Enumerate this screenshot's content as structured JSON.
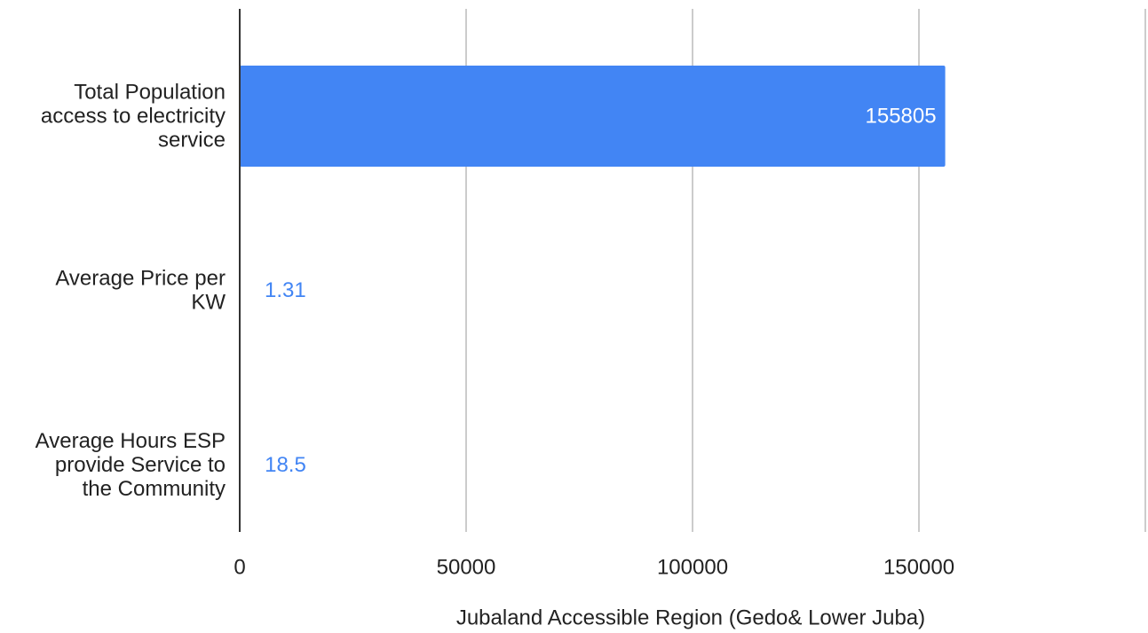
{
  "chart_data": {
    "type": "bar",
    "orientation": "horizontal",
    "title": "",
    "xlabel": "Jubaland Accessible Region (Gedo& Lower Juba)",
    "ylabel": "",
    "categories": [
      [
        "Total Population",
        "access to electricity",
        "service"
      ],
      [
        "Average Price per",
        "KW"
      ],
      [
        "Average Hours ESP",
        "provide Service to",
        "the Community"
      ]
    ],
    "values": [
      155805,
      1.31,
      18.5
    ],
    "data_labels": [
      "155805",
      "1.31",
      "18.5"
    ],
    "xlim": [
      0,
      200000
    ],
    "xticks": [
      {
        "value": 0,
        "label": "0"
      },
      {
        "value": 50000,
        "label": "50000"
      },
      {
        "value": 100000,
        "label": "100000"
      },
      {
        "value": 150000,
        "label": "150000"
      }
    ],
    "grid": true,
    "legend": "none",
    "colors": {
      "bar": "#4285f4",
      "label_inside": "#ffffff",
      "label_outside": "#4285f4",
      "grid": "#cccccc",
      "axis": "#333333"
    }
  }
}
